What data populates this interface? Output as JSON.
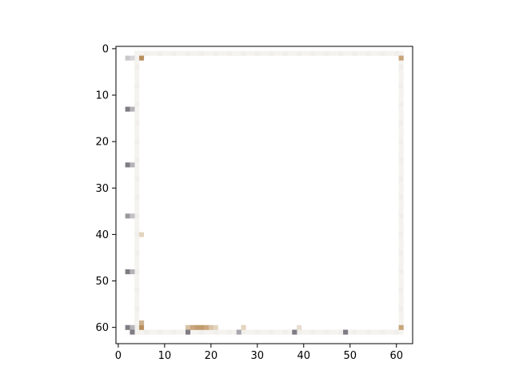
{
  "chart_data": {
    "type": "heatmap",
    "title": "",
    "xlabel": "",
    "ylabel": "",
    "x_range": [
      -0.5,
      63.5
    ],
    "y_range": [
      -0.5,
      63.5
    ],
    "y_inverted": true,
    "grid": false,
    "x_ticks": [
      {
        "value": 0,
        "label": "0"
      },
      {
        "value": 10,
        "label": "10"
      },
      {
        "value": 20,
        "label": "20"
      },
      {
        "value": 30,
        "label": "30"
      },
      {
        "value": 40,
        "label": "40"
      },
      {
        "value": 50,
        "label": "50"
      },
      {
        "value": 60,
        "label": "60"
      }
    ],
    "y_ticks": [
      {
        "value": 0,
        "label": "0"
      },
      {
        "value": 10,
        "label": "10"
      },
      {
        "value": 20,
        "label": "20"
      },
      {
        "value": 30,
        "label": "30"
      },
      {
        "value": 40,
        "label": "40"
      },
      {
        "value": 50,
        "label": "50"
      },
      {
        "value": 60,
        "label": "60"
      }
    ],
    "background_color": "#ffffff",
    "image_description_colors": {
      "frame_light": "#f1efeb",
      "frame_tan": "#e3d4bf",
      "frame_brown": "#b89060",
      "dot_gray": "#807c84"
    },
    "frame": {
      "col_start": 4,
      "col_end": 61,
      "row_start": 1,
      "row_end": 61
    },
    "pixels": [
      {
        "col": 2,
        "row": 2,
        "color": "#c9c7cb"
      },
      {
        "col": 3,
        "row": 2,
        "color": "#d8d6d9"
      },
      {
        "col": 5,
        "row": 2,
        "color": "#b89060"
      },
      {
        "col": 61,
        "row": 2,
        "color": "#c8a47a"
      },
      {
        "col": 2,
        "row": 13,
        "color": "#807c84"
      },
      {
        "col": 3,
        "row": 13,
        "color": "#b6b3b8"
      },
      {
        "col": 2,
        "row": 25,
        "color": "#807c84"
      },
      {
        "col": 3,
        "row": 25,
        "color": "#b6b3b8"
      },
      {
        "col": 2,
        "row": 36,
        "color": "#9b98a0"
      },
      {
        "col": 3,
        "row": 36,
        "color": "#c3c0c6"
      },
      {
        "col": 5,
        "row": 40,
        "color": "#e3d4bf"
      },
      {
        "col": 2,
        "row": 48,
        "color": "#807c84"
      },
      {
        "col": 3,
        "row": 48,
        "color": "#b6b3b8"
      },
      {
        "col": 2,
        "row": 60,
        "color": "#807c84"
      },
      {
        "col": 3,
        "row": 60,
        "color": "#b6b3b8"
      },
      {
        "col": 5,
        "row": 60,
        "color": "#b89060"
      },
      {
        "col": 5,
        "row": 59,
        "color": "#cdb190"
      },
      {
        "col": 3,
        "row": 61,
        "color": "#807c84"
      },
      {
        "col": 15,
        "row": 60,
        "color": "#d9c2a5"
      },
      {
        "col": 16,
        "row": 60,
        "color": "#c9a67f"
      },
      {
        "col": 17,
        "row": 60,
        "color": "#c19b6e"
      },
      {
        "col": 18,
        "row": 60,
        "color": "#c19b6e"
      },
      {
        "col": 19,
        "row": 60,
        "color": "#c9a67f"
      },
      {
        "col": 20,
        "row": 60,
        "color": "#d9c2a5"
      },
      {
        "col": 21,
        "row": 60,
        "color": "#e3d4bf"
      },
      {
        "col": 15,
        "row": 61,
        "color": "#807c84"
      },
      {
        "col": 26,
        "row": 61,
        "color": "#a9a6ad"
      },
      {
        "col": 27,
        "row": 60,
        "color": "#e3d4bf"
      },
      {
        "col": 38,
        "row": 61,
        "color": "#807c84"
      },
      {
        "col": 39,
        "row": 60,
        "color": "#e7ddd0"
      },
      {
        "col": 49,
        "row": 61,
        "color": "#807c84"
      },
      {
        "col": 61,
        "row": 60,
        "color": "#c8a47a"
      }
    ]
  }
}
